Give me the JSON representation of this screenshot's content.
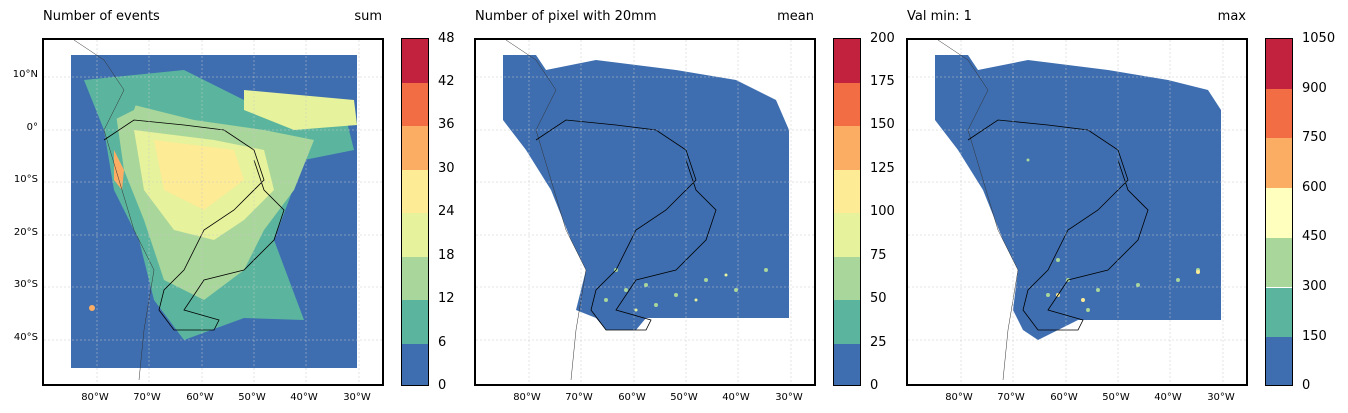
{
  "panels": [
    {
      "title": "Number of events",
      "stat": "sum",
      "colorbar_ticks": [
        "0",
        "6",
        "12",
        "18",
        "24",
        "30",
        "36",
        "42",
        "48"
      ]
    },
    {
      "title": "Number of pixel with 20mm",
      "stat": "mean",
      "colorbar_ticks": [
        "0",
        "25",
        "50",
        "75",
        "100",
        "125",
        "150",
        "175",
        "200"
      ]
    },
    {
      "title": "Val min: 1",
      "stat": "max",
      "colorbar_ticks": [
        "0",
        "150",
        "300",
        "450",
        "600",
        "750",
        "900",
        "1050"
      ]
    }
  ],
  "lat_labels": [
    "10°N",
    "0°",
    "10°S",
    "20°S",
    "30°S",
    "40°S"
  ],
  "lon_labels": [
    "80°W",
    "70°W",
    "60°W",
    "50°W",
    "40°W",
    "30°W"
  ],
  "colors": {
    "scale": [
      "#3e6eb0",
      "#5bb59e",
      "#a9d69b",
      "#e6f29c",
      "#fdeb95",
      "#fbad64",
      "#f26d44",
      "#c3223f"
    ],
    "scale7": [
      "#3e6eb0",
      "#5bb59e",
      "#a9d69b",
      "#ffffbe",
      "#fbad64",
      "#f26d44",
      "#c3223f"
    ]
  }
}
